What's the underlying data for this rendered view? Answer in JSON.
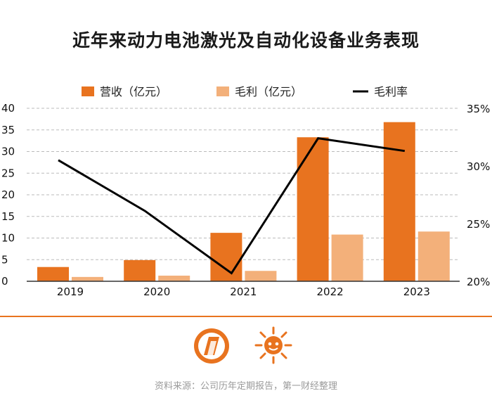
{
  "title": "近年来动力电池激光及自动化设备业务表现",
  "source": "资料来源：公司历年定期报告，第一财经整理",
  "colors": {
    "revenue": "#e8731f",
    "gross_profit": "#f3b07a",
    "margin": "#000000",
    "accent": "#e8731f",
    "grid": "#bbbbbb"
  },
  "icons": {
    "left_logo": "parallelogram-logo-icon",
    "right_logo": "sun-face-logo-icon"
  },
  "chart_data": {
    "type": "bar",
    "categories": [
      "2019",
      "2020",
      "2021",
      "2022",
      "2023"
    ],
    "series": [
      {
        "name": "营收（亿元）",
        "type": "bar",
        "axis": "left",
        "values": [
          3.3,
          4.9,
          11.2,
          33.3,
          36.8
        ]
      },
      {
        "name": "毛利（亿元）",
        "type": "bar",
        "axis": "left",
        "values": [
          1.0,
          1.3,
          2.4,
          10.8,
          11.5
        ]
      },
      {
        "name": "毛利率",
        "type": "line",
        "axis": "right",
        "values": [
          30.5,
          26.1,
          20.7,
          32.4,
          31.3
        ]
      }
    ],
    "ylim": [
      0,
      40
    ],
    "yticks": [
      "0",
      "5",
      "10",
      "15",
      "20",
      "25",
      "30",
      "35",
      "40"
    ],
    "y2lim": [
      20,
      35
    ],
    "y2ticks": [
      "20%",
      "25%",
      "30%",
      "35%"
    ],
    "grid": true,
    "legend_position": "top"
  }
}
